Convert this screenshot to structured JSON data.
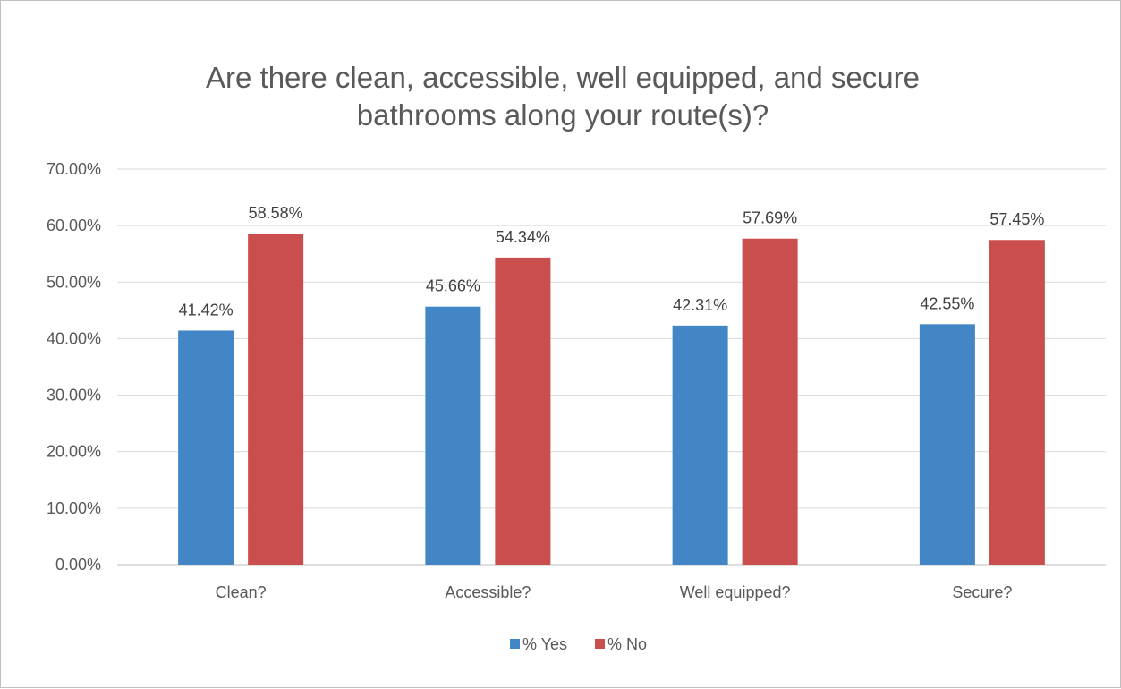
{
  "chart_data": {
    "type": "bar",
    "title_lines": [
      "Are there clean, accessible, well equipped, and secure",
      "bathrooms along your route(s)?"
    ],
    "categories": [
      "Clean?",
      "Accessible?",
      "Well equipped?",
      "Secure?"
    ],
    "series": [
      {
        "name": "% Yes",
        "color": "#4286c6",
        "values": [
          41.42,
          45.66,
          42.31,
          42.55
        ],
        "labels": [
          "41.42%",
          "45.66%",
          "42.31%",
          "42.55%"
        ]
      },
      {
        "name": "% No",
        "color": "#cb4e4e",
        "values": [
          58.58,
          54.34,
          57.69,
          57.45
        ],
        "labels": [
          "58.58%",
          "54.34%",
          "57.69%",
          "57.45%"
        ]
      }
    ],
    "ylim": [
      0,
      70
    ],
    "yticks": [
      0,
      10,
      20,
      30,
      40,
      50,
      60,
      70
    ],
    "ytick_labels": [
      "0.00%",
      "10.00%",
      "20.00%",
      "30.00%",
      "40.00%",
      "50.00%",
      "60.00%",
      "70.00%"
    ],
    "grid": true,
    "legend_position": "bottom",
    "gridline_color": "#d9d9d9"
  }
}
